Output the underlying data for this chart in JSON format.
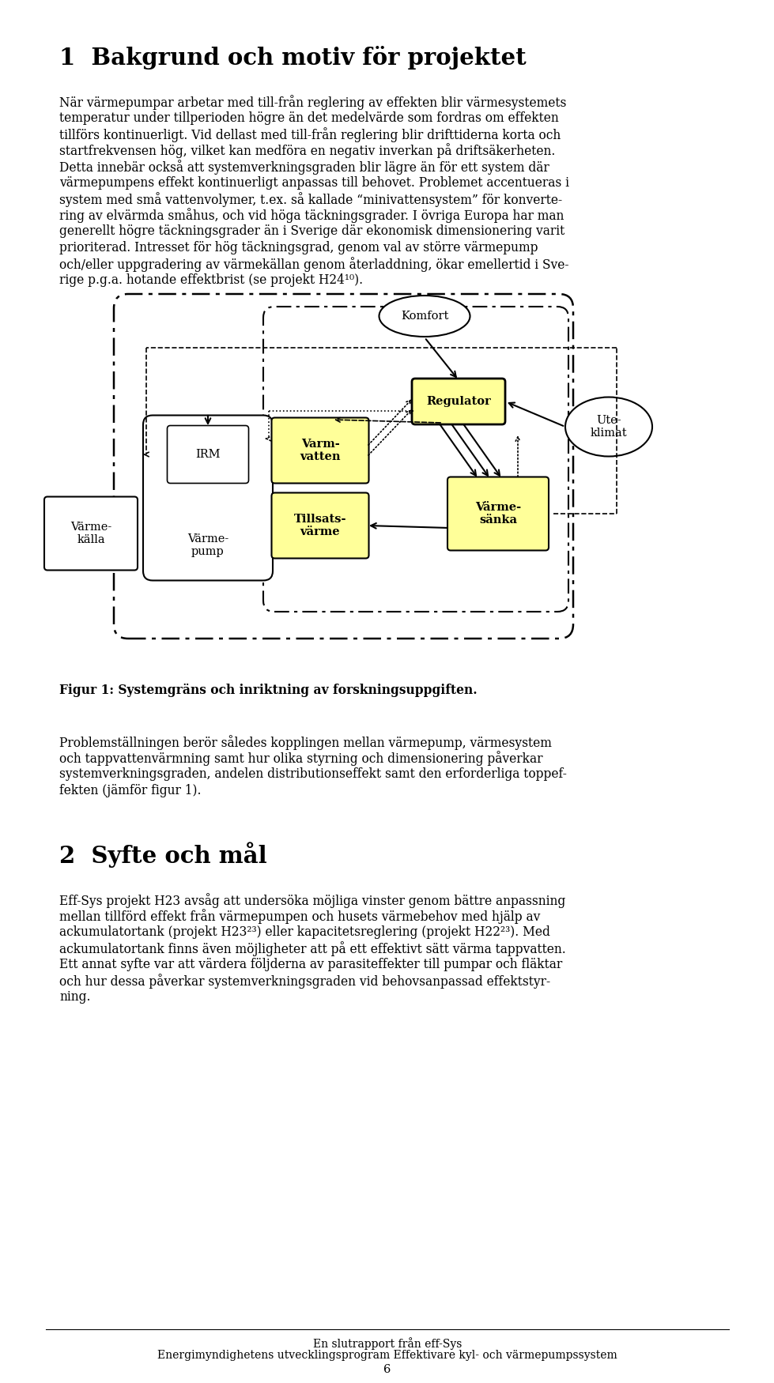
{
  "title1": "1  Bakgrund och motiv för projektet",
  "body1_lines": [
    "När värmepumpar arbetar med till-från reglering av effekten blir värmesystemets",
    "temperatur under tillperioden högre än det medelvärde som fordras om effekten",
    "tillförs kontinuerligt. Vid dellast med till-från reglering blir drifttiderna korta och",
    "startfrekvensen hög, vilket kan medföra en negativ inverkan på driftsäkerheten.",
    "Detta innebär också att systemverkningsgraden blir lägre än för ett system där",
    "värmepumpens effekt kontinuerligt anpassas till behovet. Problemet accentueras i",
    "system med små vattenvolymer, t.ex. så kallade “minivattensystem” för konverte-",
    "ring av elvärmda småhus, och vid höga täckningsgrader. I övriga Europa har man",
    "generellt högre täckningsgrader än i Sverige där ekonomisk dimensionering varit",
    "prioriterad. Intresset för hög täckningsgrad, genom val av större värmepump",
    "och/eller uppgradering av värmekällan genom återladdning, ökar emellertid i Sve-",
    "rige p.g.a. hotande effektbrist (se projekt H24¹⁰)."
  ],
  "fig_caption": "Figur 1: Systemgräns och inriktning av forskningsuppgiften.",
  "body2_lines": [
    "Problemställningen berör således kopplingen mellan värmepump, värmesystem",
    "och tappvattenvärmning samt hur olika styrning och dimensionering påverkar",
    "systemverkningsgraden, andelen distributionseffekt samt den erforderliga toppef-",
    "fekten (jämför figur 1)."
  ],
  "title2": "2  Syfte och mål",
  "body3_lines": [
    "Eff-Sys projekt H23 avsåg att undersöka möjliga vinster genom bättre anpassning",
    "mellan tillförd effekt från värmepumpen och husets värmebehov med hjälp av",
    "ackumulatortank (projekt H23²³) eller kapacitetsreglering (projekt H22²³). Med",
    "ackumulatortank finns även möjligheter att på ett effektivt sätt värma tappvatten.",
    "Ett annat syfte var att värdera följderna av parasiteffekter till pumpar och fläktar",
    "och hur dessa påverkar systemverkningsgraden vid behovsanpassad effektstyr-",
    "ning."
  ],
  "footer1": "En slutrapport från eff-Sys",
  "footer2": "Energimyndighetens utvecklingsprogram Effektivare kyl- och värmepumpssystem",
  "footer3": "6",
  "yellow": "#FFFF99",
  "white": "#FFFFFF",
  "black": "#000000"
}
